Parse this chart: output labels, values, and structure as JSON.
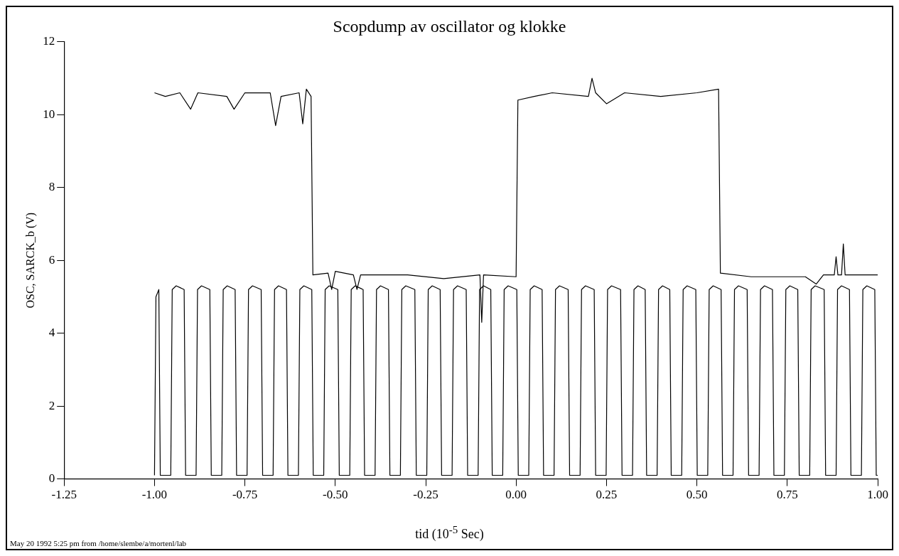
{
  "chart_data": {
    "type": "line",
    "title": "Scopdump av oscillator og klokke",
    "xlabel": "tid  (10$^{-5}$ Sec)",
    "ylabel": "OSC, SARCK_b (V)",
    "annotations": [
      "May 20 1992  5:25 pm from /home/slembe/a/mortenl/lab"
    ],
    "xlim": [
      -1.25,
      1.0
    ],
    "xticks": [
      {
        "value": -1.25,
        "label": "-1.25"
      },
      {
        "value": -1,
        "label": "-1.00"
      },
      {
        "value": -0.75,
        "label": "-0.75"
      },
      {
        "value": -0.5,
        "label": "-0.50"
      },
      {
        "value": -0.25,
        "label": "-0.25"
      },
      {
        "value": 0,
        "label": "0.00"
      },
      {
        "value": 0.25,
        "label": "0.25"
      },
      {
        "value": 0.5,
        "label": "0.50"
      },
      {
        "value": 0.75,
        "label": "0.75"
      },
      {
        "value": 1,
        "label": "1.00"
      }
    ],
    "ylim": [
      0,
      12
    ],
    "yticks": [
      0,
      2,
      4,
      6,
      8,
      10,
      12
    ],
    "grid": false,
    "legend": false,
    "marker": "none",
    "line_style": "solid",
    "series": [
      {
        "color": "#000000",
        "x": [
          -1.0,
          -0.97,
          -0.93,
          -0.9,
          -0.88,
          -0.8,
          -0.78,
          -0.75,
          -0.68,
          -0.665,
          -0.65,
          -0.6,
          -0.59,
          -0.58,
          -0.567,
          -0.562,
          -0.52,
          -0.51,
          -0.5,
          -0.45,
          -0.44,
          -0.43,
          -0.3,
          -0.2,
          -0.1,
          -0.095,
          -0.09,
          0.0,
          0.005,
          0.05,
          0.1,
          0.2,
          0.21,
          0.22,
          0.25,
          0.3,
          0.4,
          0.5,
          0.56,
          0.565,
          0.65,
          0.8,
          0.83,
          0.85,
          0.88,
          0.885,
          0.89,
          0.9,
          0.905,
          0.91,
          1.0
        ],
        "values": [
          10.6,
          10.5,
          10.6,
          10.15,
          10.6,
          10.5,
          10.15,
          10.6,
          10.6,
          9.7,
          10.5,
          10.6,
          9.75,
          10.7,
          10.5,
          5.6,
          5.65,
          5.2,
          5.7,
          5.6,
          5.2,
          5.6,
          5.6,
          5.5,
          5.6,
          4.3,
          5.6,
          5.55,
          10.4,
          10.5,
          10.6,
          10.5,
          11.0,
          10.6,
          10.3,
          10.6,
          10.5,
          10.6,
          10.7,
          5.65,
          5.55,
          5.55,
          5.35,
          5.6,
          5.6,
          6.1,
          5.6,
          5.6,
          6.45,
          5.6,
          5.6
        ]
      },
      {
        "color": "#000000",
        "x": [
          -1.0,
          -0.996,
          -0.988,
          -0.984,
          -0.955,
          -0.951,
          -0.94,
          -0.918,
          -0.914,
          -0.885,
          -0.881,
          -0.87,
          -0.847,
          -0.843,
          -0.814,
          -0.81,
          -0.799,
          -0.777,
          -0.773,
          -0.744,
          -0.74,
          -0.729,
          -0.705,
          -0.701,
          -0.672,
          -0.668,
          -0.657,
          -0.635,
          -0.631,
          -0.602,
          -0.598,
          -0.587,
          -0.565,
          -0.561,
          -0.532,
          -0.528,
          -0.517,
          -0.493,
          -0.489,
          -0.46,
          -0.456,
          -0.445,
          -0.423,
          -0.419,
          -0.39,
          -0.386,
          -0.375,
          -0.353,
          -0.349,
          -0.32,
          -0.316,
          -0.305,
          -0.28,
          -0.276,
          -0.247,
          -0.243,
          -0.232,
          -0.21,
          -0.206,
          -0.177,
          -0.173,
          -0.162,
          -0.138,
          -0.134,
          -0.105,
          -0.101,
          -0.09,
          -0.07,
          -0.066,
          -0.037,
          -0.033,
          -0.022,
          0.002,
          0.006,
          0.035,
          0.039,
          0.05,
          0.072,
          0.076,
          0.105,
          0.109,
          0.12,
          0.144,
          0.148,
          0.177,
          0.181,
          0.192,
          0.216,
          0.22,
          0.249,
          0.253,
          0.264,
          0.289,
          0.293,
          0.322,
          0.326,
          0.337,
          0.357,
          0.361,
          0.39,
          0.394,
          0.405,
          0.425,
          0.429,
          0.458,
          0.462,
          0.473,
          0.497,
          0.501,
          0.53,
          0.534,
          0.545,
          0.567,
          0.571,
          0.6,
          0.604,
          0.615,
          0.639,
          0.643,
          0.672,
          0.676,
          0.687,
          0.709,
          0.713,
          0.742,
          0.746,
          0.757,
          0.779,
          0.783,
          0.812,
          0.816,
          0.827,
          0.852,
          0.856,
          0.885,
          0.889,
          0.9,
          0.922,
          0.926,
          0.955,
          0.959,
          0.97,
          0.992,
          0.996,
          1.0
        ],
        "values": [
          0.1,
          5.0,
          5.2,
          0.1,
          0.1,
          5.2,
          5.3,
          5.2,
          0.1,
          0.1,
          5.2,
          5.3,
          5.2,
          0.1,
          0.1,
          5.2,
          5.3,
          5.2,
          0.1,
          0.1,
          5.2,
          5.3,
          5.2,
          0.1,
          0.1,
          5.2,
          5.3,
          5.2,
          0.1,
          0.1,
          5.2,
          5.3,
          5.2,
          0.1,
          0.1,
          5.2,
          5.3,
          5.2,
          0.1,
          0.1,
          5.2,
          5.3,
          5.2,
          0.1,
          0.1,
          5.2,
          5.3,
          5.2,
          0.1,
          0.1,
          5.2,
          5.3,
          5.2,
          0.1,
          0.1,
          5.2,
          5.3,
          5.2,
          0.1,
          0.1,
          5.2,
          5.3,
          5.2,
          0.1,
          0.1,
          5.2,
          5.3,
          5.2,
          0.1,
          0.1,
          5.2,
          5.3,
          5.2,
          0.1,
          0.1,
          5.2,
          5.3,
          5.2,
          0.1,
          0.1,
          5.2,
          5.3,
          5.2,
          0.1,
          0.1,
          5.2,
          5.3,
          5.2,
          0.1,
          0.1,
          5.2,
          5.3,
          5.2,
          0.1,
          0.1,
          5.2,
          5.3,
          5.2,
          0.1,
          0.1,
          5.2,
          5.3,
          5.2,
          0.1,
          0.1,
          5.2,
          5.3,
          5.2,
          0.1,
          0.1,
          5.2,
          5.3,
          5.2,
          0.1,
          0.1,
          5.2,
          5.3,
          5.2,
          0.1,
          0.1,
          5.2,
          5.3,
          5.2,
          0.1,
          0.1,
          5.2,
          5.3,
          5.2,
          0.1,
          0.1,
          5.2,
          5.3,
          5.2,
          0.1,
          0.1,
          5.2,
          5.3,
          5.2,
          0.1,
          0.1,
          5.2,
          5.3,
          5.2,
          0.1,
          0.1
        ]
      }
    ]
  }
}
